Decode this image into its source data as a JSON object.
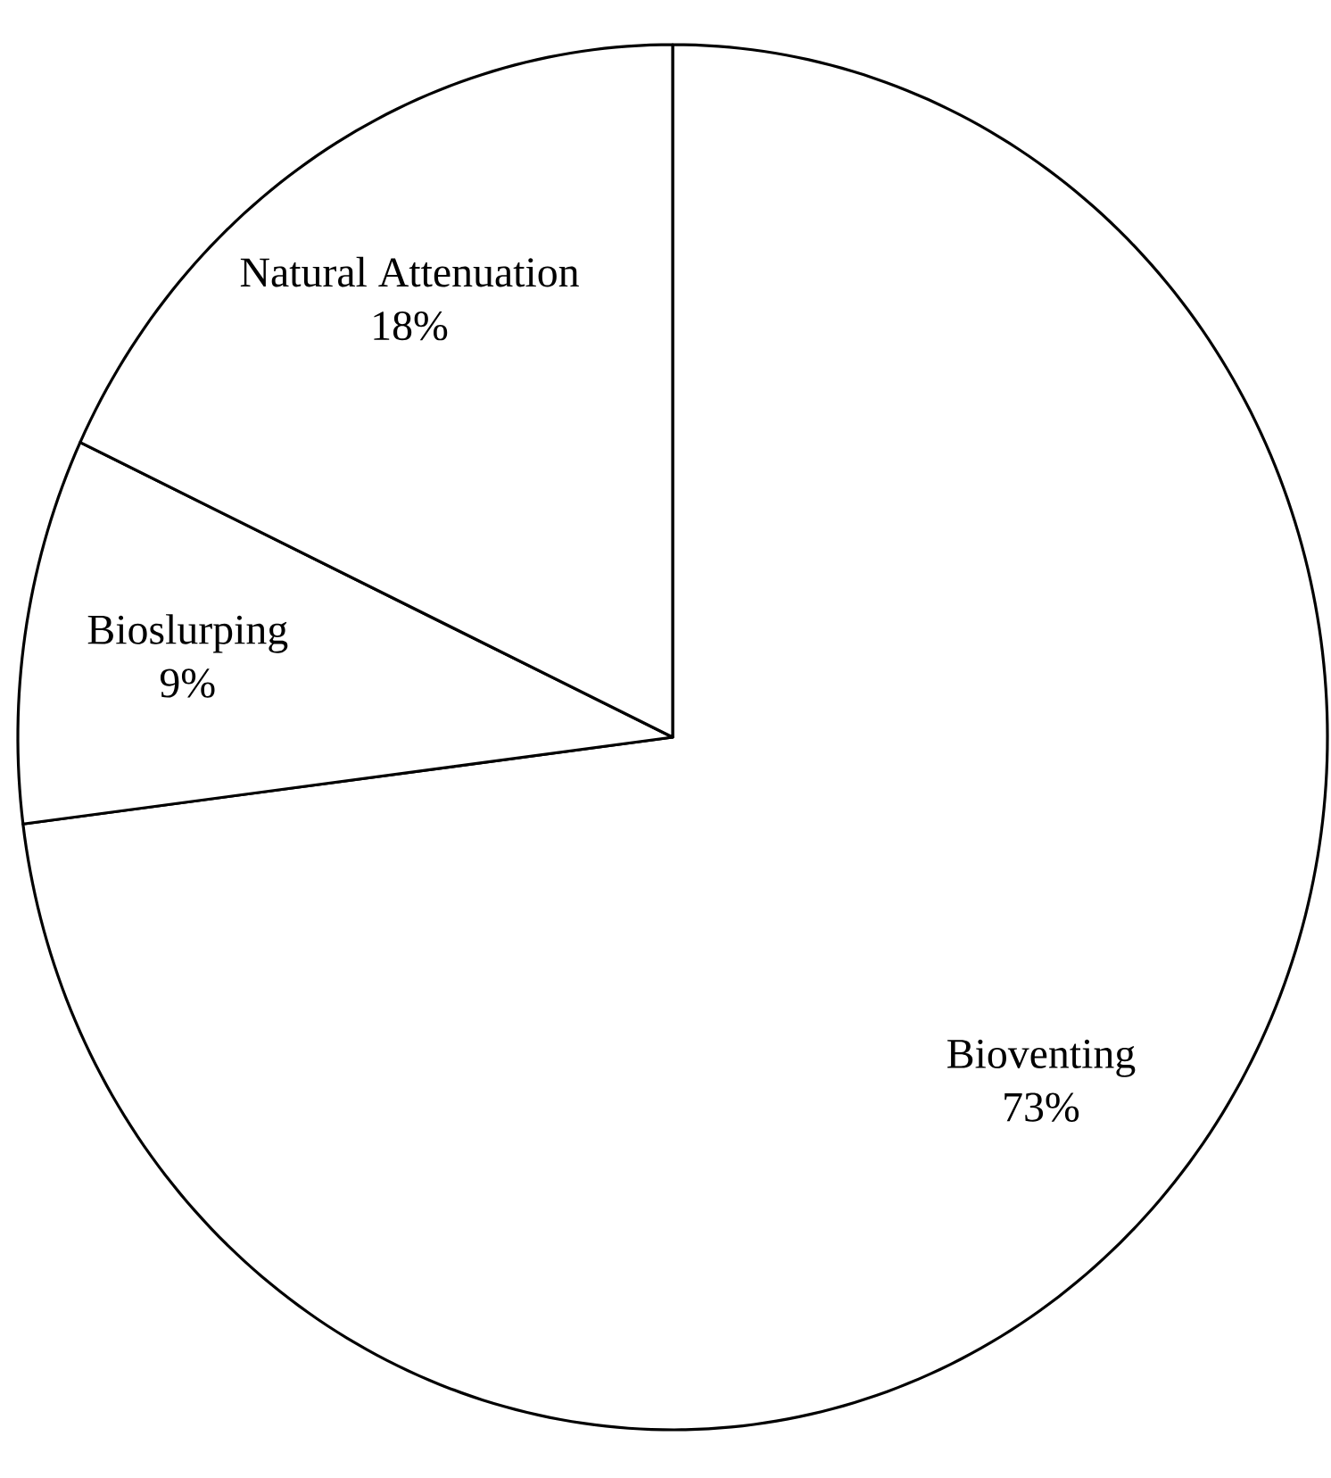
{
  "chart_data": {
    "type": "pie",
    "categories": [
      "Bioventing",
      "Bioslurping",
      "Natural Attenuation"
    ],
    "values": [
      73,
      9,
      18
    ],
    "value_labels": [
      "73%",
      "9%",
      "18%"
    ],
    "colors": [
      "#ffffff",
      "#ffffff",
      "#ffffff"
    ]
  }
}
